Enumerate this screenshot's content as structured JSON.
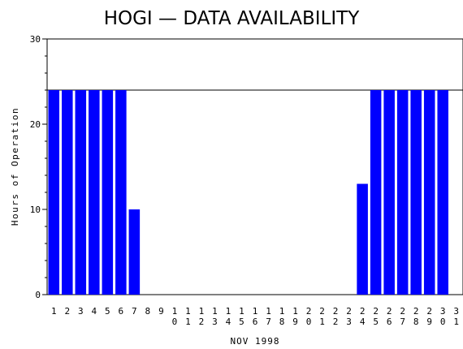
{
  "chart_data": {
    "type": "bar",
    "title": "HOGI — DATA AVAILABILITY",
    "xlabel": "NOV 1998",
    "ylabel": "Hours of Operation",
    "categories": [
      "1",
      "2",
      "3",
      "4",
      "5",
      "6",
      "7",
      "8",
      "9",
      "10",
      "11",
      "12",
      "13",
      "14",
      "15",
      "16",
      "17",
      "18",
      "19",
      "20",
      "21",
      "22",
      "23",
      "24",
      "25",
      "26",
      "27",
      "28",
      "29",
      "30",
      "31"
    ],
    "values": [
      24,
      24,
      24,
      24,
      24,
      24,
      10,
      0,
      0,
      0,
      0,
      0,
      0,
      0,
      0,
      0,
      0,
      0,
      0,
      0,
      0,
      0,
      0,
      13,
      24,
      24,
      24,
      24,
      24,
      24,
      0
    ],
    "ylim": [
      0,
      30
    ],
    "yticks": [
      0,
      10,
      20,
      30
    ],
    "reference_line": 24,
    "bar_color": "#0000ff",
    "grid": false
  }
}
